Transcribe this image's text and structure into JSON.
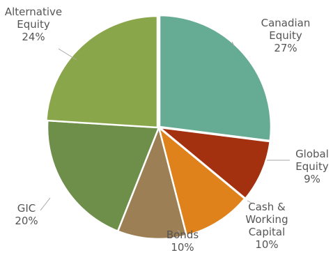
{
  "chart_data": {
    "type": "pie",
    "title": "",
    "legend": "none",
    "slices": [
      {
        "label": [
          "Canadian",
          "Equity"
        ],
        "value": 27,
        "value_label": "27%",
        "color": "#66ac94"
      },
      {
        "label": [
          "Global",
          "Equity"
        ],
        "value": 9,
        "value_label": "9%",
        "color": "#a3310f"
      },
      {
        "label": [
          "Cash &",
          "Working",
          "Capital"
        ],
        "value": 10,
        "value_label": "10%",
        "color": "#e0821b"
      },
      {
        "label": [
          "Bonds"
        ],
        "value": 10,
        "value_label": "10%",
        "color": "#9c7f55"
      },
      {
        "label": [
          "GIC"
        ],
        "value": 20,
        "value_label": "20%",
        "color": "#6e8f4a"
      },
      {
        "label": [
          "Alternative",
          "Equity"
        ],
        "value": 24,
        "value_label": "24%",
        "color": "#8aa64a"
      }
    ]
  }
}
